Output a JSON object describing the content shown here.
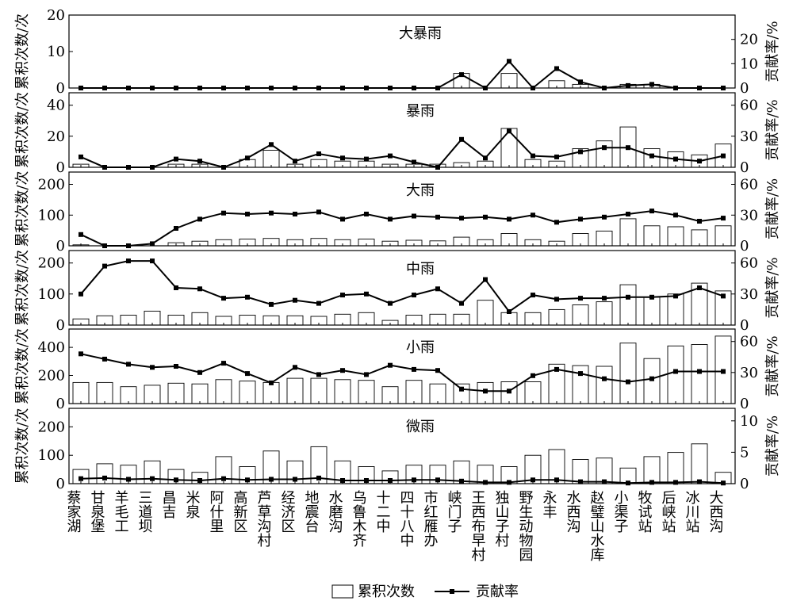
{
  "chart_data": {
    "type": "bar",
    "categories": [
      "蔡家湖",
      "甘泉堡",
      "羊毛工",
      "三道坝",
      "昌吉",
      "米泉",
      "阿什里",
      "高新区",
      "芦草沟村",
      "经济区",
      "地震台",
      "水磨沟",
      "乌鲁木齐",
      "十二中",
      "四十八中",
      "市红雁办",
      "峡门子",
      "王西布早村",
      "独山子村",
      "野生动物园",
      "永丰",
      "水西沟",
      "赵璧山水库",
      "小渠子",
      "牧试站",
      "后峡站",
      "冰川站",
      "大西沟"
    ],
    "left_axis_label": "累积次数/次",
    "right_axis_label": "贡献率/%",
    "legend": {
      "bar": "累积次数",
      "line": "贡献率"
    },
    "panels": [
      {
        "title": "大暴雨",
        "ylim_left": [
          0,
          20
        ],
        "yticks_left": [
          0,
          10,
          20
        ],
        "ylim_right": [
          0,
          30
        ],
        "yticks_right": [
          0,
          10,
          20
        ],
        "bars": [
          0,
          0,
          0,
          0,
          0,
          0,
          0,
          0,
          0,
          0,
          0,
          0,
          0,
          0,
          0,
          0,
          4,
          0,
          4,
          0,
          2,
          1,
          0,
          1,
          1,
          0,
          0,
          0
        ],
        "line": [
          0,
          0,
          0,
          0,
          0,
          0,
          0,
          0,
          0,
          0,
          0,
          0,
          0,
          0,
          0,
          0,
          5.5,
          0,
          11,
          0,
          8,
          2.5,
          0,
          1,
          1.5,
          0,
          0,
          0
        ]
      },
      {
        "title": "暴雨",
        "ylim_left": [
          0,
          48
        ],
        "yticks_left": [
          0,
          20,
          40
        ],
        "ylim_right": [
          0,
          72
        ],
        "yticks_right": [
          0,
          30,
          60
        ],
        "bars": [
          2,
          0,
          0,
          0,
          2,
          2,
          0,
          5,
          11,
          2,
          5,
          4,
          4,
          2,
          2,
          2,
          3,
          4,
          25,
          5,
          4,
          12,
          17,
          26,
          12,
          10,
          8,
          15
        ],
        "line": [
          10,
          0,
          0,
          0,
          8,
          6,
          0,
          9,
          22,
          6,
          13,
          9,
          8,
          11,
          5,
          0,
          27,
          9,
          35,
          11,
          10,
          15,
          19,
          19,
          11,
          8,
          6,
          11
        ]
      },
      {
        "title": "大雨",
        "ylim_left": [
          0,
          240
        ],
        "yticks_left": [
          0,
          100,
          200
        ],
        "ylim_right": [
          0,
          72
        ],
        "yticks_right": [
          0,
          30,
          60
        ],
        "bars": [
          3,
          0,
          0,
          0,
          10,
          15,
          20,
          22,
          24,
          20,
          24,
          20,
          22,
          15,
          18,
          16,
          28,
          20,
          40,
          20,
          15,
          40,
          48,
          88,
          65,
          62,
          52,
          65
        ],
        "line": [
          11,
          0,
          0,
          2,
          17,
          26,
          32,
          31,
          32,
          31,
          33,
          26,
          31,
          26,
          29,
          28,
          27,
          28,
          26,
          30,
          23,
          26,
          28,
          31,
          34,
          30,
          24,
          27
        ]
      },
      {
        "title": "中雨",
        "ylim_left": [
          0,
          240
        ],
        "yticks_left": [
          0,
          100,
          200
        ],
        "ylim_right": [
          0,
          72
        ],
        "yticks_right": [
          0,
          30,
          60
        ],
        "bars": [
          20,
          30,
          32,
          45,
          32,
          40,
          28,
          32,
          30,
          30,
          28,
          35,
          40,
          15,
          32,
          35,
          35,
          80,
          40,
          40,
          50,
          65,
          75,
          130,
          90,
          100,
          135,
          110
        ],
        "line": [
          30,
          57,
          62,
          62,
          36,
          35,
          26,
          27,
          20,
          24,
          21,
          29,
          30,
          21,
          29,
          35,
          21,
          44,
          13,
          29,
          25,
          26,
          26,
          27,
          27,
          28,
          36,
          28
        ]
      },
      {
        "title": "小雨",
        "ylim_left": [
          0,
          530
        ],
        "yticks_left": [
          0,
          200,
          400
        ],
        "ylim_right": [
          0,
          72
        ],
        "yticks_right": [
          0,
          30,
          60
        ],
        "bars": [
          150,
          150,
          120,
          130,
          145,
          140,
          170,
          160,
          150,
          180,
          180,
          170,
          165,
          120,
          165,
          140,
          140,
          150,
          155,
          155,
          280,
          270,
          265,
          430,
          320,
          410,
          420,
          480
        ],
        "line": [
          48,
          43,
          38,
          35,
          36,
          30,
          39,
          29,
          20,
          35,
          28,
          32,
          28,
          37,
          33,
          32,
          14,
          12,
          12,
          27,
          33,
          29,
          24,
          21,
          24,
          31,
          31,
          31
        ]
      },
      {
        "title": "微雨",
        "ylim_left": [
          0,
          265
        ],
        "yticks_left": [
          0,
          100,
          200
        ],
        "ylim_right": [
          0,
          12
        ],
        "yticks_right": [
          0,
          5,
          10
        ],
        "bars": [
          50,
          70,
          65,
          80,
          50,
          40,
          95,
          60,
          115,
          80,
          130,
          80,
          60,
          45,
          65,
          65,
          80,
          65,
          60,
          100,
          120,
          85,
          90,
          55,
          95,
          110,
          140,
          40
        ],
        "line": [
          0.8,
          0.9,
          0.7,
          0.8,
          0.6,
          0.5,
          0.8,
          0.6,
          0.7,
          0.7,
          0.9,
          0.5,
          0.5,
          0.5,
          0.6,
          0.6,
          0.4,
          0.2,
          0.2,
          0.6,
          0.6,
          0.3,
          0.3,
          0.1,
          0.2,
          0.2,
          0.3,
          0.1
        ]
      }
    ]
  }
}
